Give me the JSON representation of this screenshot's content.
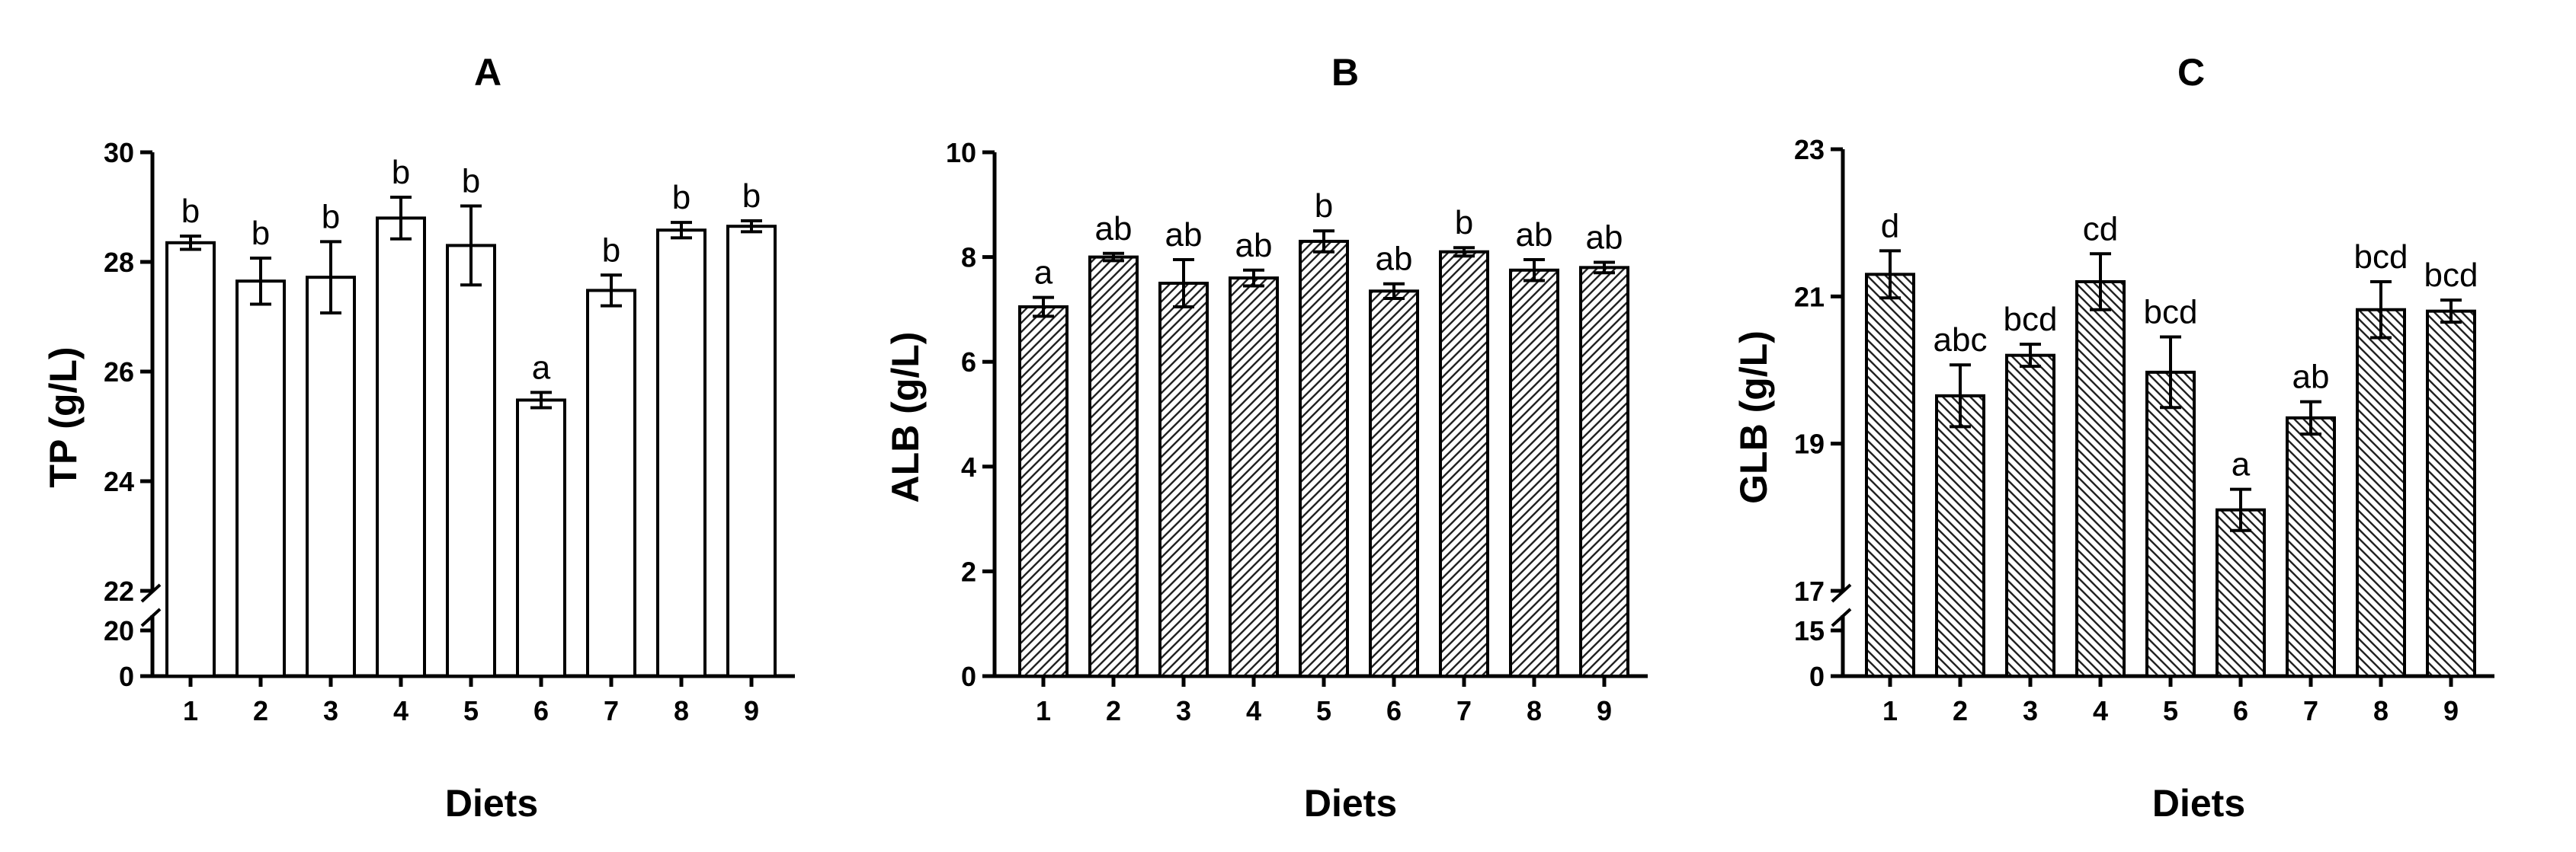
{
  "chart_data": [
    {
      "type": "bar",
      "title": "A",
      "xlabel": "Diets",
      "ylabel": "TP (g/L)",
      "categories": [
        "1",
        "2",
        "3",
        "4",
        "5",
        "6",
        "7",
        "8",
        "9"
      ],
      "values": [
        28.35,
        27.65,
        27.72,
        28.8,
        28.3,
        25.48,
        27.48,
        28.58,
        28.65
      ],
      "errors": [
        0.12,
        0.42,
        0.65,
        0.38,
        0.72,
        0.14,
        0.28,
        0.14,
        0.1
      ],
      "letters": [
        "b",
        "b",
        "b",
        "b",
        "b",
        "a",
        "b",
        "b",
        "b"
      ],
      "fill": "open",
      "yaxis_break": {
        "lower_ticks": [
          0,
          20
        ],
        "upper_ticks": [
          22,
          24,
          26,
          28,
          30
        ]
      }
    },
    {
      "type": "bar",
      "title": "B",
      "xlabel": "Diets",
      "ylabel": "ALB (g/L)",
      "categories": [
        "1",
        "2",
        "3",
        "4",
        "5",
        "6",
        "7",
        "8",
        "9"
      ],
      "values": [
        7.05,
        8.0,
        7.5,
        7.6,
        8.3,
        7.35,
        8.1,
        7.75,
        7.8
      ],
      "errors": [
        0.18,
        0.07,
        0.45,
        0.15,
        0.2,
        0.14,
        0.08,
        0.2,
        0.1
      ],
      "letters": [
        "a",
        "ab",
        "ab",
        "ab",
        "b",
        "ab",
        "b",
        "ab",
        "ab"
      ],
      "fill": "hatched-forward",
      "ylim": [
        0,
        10
      ],
      "yticks": [
        0,
        2,
        4,
        6,
        8,
        10
      ]
    },
    {
      "type": "bar",
      "title": "C",
      "xlabel": "Diets",
      "ylabel": "GLB (g/L)",
      "categories": [
        "1",
        "2",
        "3",
        "4",
        "5",
        "6",
        "7",
        "8",
        "9"
      ],
      "values": [
        21.3,
        19.65,
        20.2,
        21.2,
        19.97,
        18.1,
        19.35,
        20.82,
        20.8
      ],
      "errors": [
        0.32,
        0.42,
        0.15,
        0.38,
        0.48,
        0.28,
        0.22,
        0.38,
        0.15
      ],
      "letters": [
        "d",
        "abc",
        "bcd",
        "cd",
        "bcd",
        "a",
        "ab",
        "bcd",
        "bcd"
      ],
      "fill": "hatched-back",
      "yaxis_break": {
        "lower_ticks": [
          0,
          15
        ],
        "upper_ticks": [
          17,
          19,
          21,
          23
        ]
      }
    }
  ]
}
